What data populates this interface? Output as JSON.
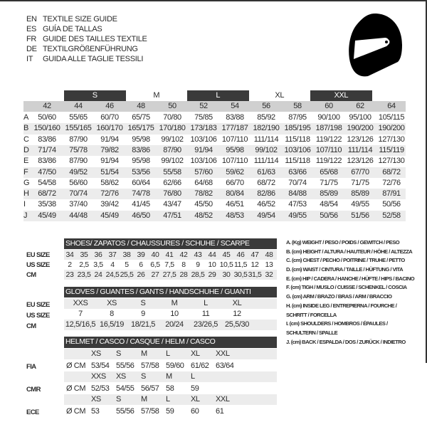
{
  "titles": [
    {
      "code": "EN",
      "text": "TEXTILE SIZE GUIDE"
    },
    {
      "code": "ES",
      "text": "GUÍA DE TALLAS"
    },
    {
      "code": "FR",
      "text": "GUIDE DES TAILLES TEXTILE"
    },
    {
      "code": "DE",
      "text": "TEXTILGRÖßENFÜHRUNG"
    },
    {
      "code": "IT",
      "text": "GUIDA ALLE TAGLIE TESSILI"
    }
  ],
  "icon": "helmet-icon",
  "textile": {
    "size_groups": [
      "S",
      "M",
      "L",
      "XL",
      "XXL"
    ],
    "sizes": [
      "42",
      "44",
      "46",
      "48",
      "50",
      "52",
      "54",
      "56",
      "58",
      "60",
      "62",
      "64"
    ],
    "rows": [
      {
        "label": "A",
        "values": [
          "50/60",
          "55/65",
          "60/70",
          "65/75",
          "70/80",
          "75/85",
          "83/88",
          "85/92",
          "87/95",
          "90/100",
          "95/100",
          "105/115"
        ]
      },
      {
        "label": "B",
        "values": [
          "150/160",
          "155/165",
          "160/170",
          "165/175",
          "170/180",
          "173/183",
          "177/187",
          "182/190",
          "185/195",
          "187/198",
          "190/200",
          "190/200"
        ]
      },
      {
        "label": "C",
        "values": [
          "83/86",
          "87/90",
          "91/94",
          "95/98",
          "99/102",
          "103/106",
          "107/110",
          "111/114",
          "115/118",
          "119/122",
          "123/126",
          "127/130"
        ]
      },
      {
        "label": "D",
        "values": [
          "71/74",
          "75/78",
          "79/82",
          "83/86",
          "87/90",
          "91/94",
          "95/98",
          "99/102",
          "103/106",
          "107/110",
          "111/114",
          "115/119"
        ]
      },
      {
        "label": "E",
        "values": [
          "83/86",
          "87/90",
          "91/94",
          "95/98",
          "99/102",
          "103/106",
          "107/110",
          "111/114",
          "115/118",
          "119/122",
          "123/126",
          "127/130"
        ]
      },
      {
        "label": "F",
        "values": [
          "47/50",
          "49/52",
          "51/54",
          "53/56",
          "55/58",
          "57/60",
          "59/62",
          "61/63",
          "63/66",
          "65/68",
          "67/70",
          "68/72"
        ]
      },
      {
        "label": "G",
        "values": [
          "54/58",
          "56/60",
          "58/62",
          "60/64",
          "62/66",
          "64/68",
          "66/70",
          "68/72",
          "70/74",
          "71/75",
          "71/75",
          "72/76"
        ]
      },
      {
        "label": "H",
        "values": [
          "68/72",
          "70/74",
          "72/76",
          "74/78",
          "76/80",
          "78/82",
          "80/84",
          "82/86",
          "84/88",
          "85/89",
          "85/89",
          "87/91"
        ]
      },
      {
        "label": "I",
        "values": [
          "35/38",
          "37/40",
          "39/42",
          "41/45",
          "43/47",
          "45/50",
          "46/51",
          "46/52",
          "47/53",
          "48/54",
          "49/55",
          "50/56"
        ]
      },
      {
        "label": "J",
        "values": [
          "45/49",
          "44/48",
          "45/49",
          "46/50",
          "47/51",
          "48/52",
          "48/53",
          "49/54",
          "49/55",
          "50/56",
          "51/56",
          "52/58"
        ]
      }
    ]
  },
  "shoes": {
    "title": "SHOES/ ZAPATOS / CHAUSSURES / SCHUHE / SCARPE",
    "rows": [
      {
        "label": "EU SIZE",
        "values": [
          "34",
          "35",
          "36",
          "37",
          "38",
          "39",
          "40",
          "41",
          "42",
          "43",
          "44",
          "45",
          "46",
          "47",
          "48"
        ]
      },
      {
        "label": "US SIZE",
        "values": [
          "2",
          "2,5",
          "3,5",
          "4",
          "5",
          "6",
          "6,5",
          "7,5",
          "8",
          "9",
          "10",
          "10,5",
          "11,5",
          "12",
          "13"
        ]
      },
      {
        "label": "CM",
        "values": [
          "23",
          "23,5",
          "24",
          "24,5",
          "25,5",
          "26",
          "27",
          "27,5",
          "28",
          "28,5",
          "29",
          "30",
          "30,5",
          "31,5",
          "32"
        ]
      }
    ]
  },
  "gloves": {
    "title": "GLOVES / GUANTES / GANTS / HANDSCHUHE / GUANTI",
    "rows": [
      {
        "label": "EU SIZE",
        "values": [
          "XXS",
          "XS",
          "S",
          "M",
          "L",
          "XL"
        ]
      },
      {
        "label": "US SIZE",
        "values": [
          "7",
          "8",
          "9",
          "10",
          "11",
          "12"
        ]
      },
      {
        "label": "CM",
        "values": [
          "12,5/16,5",
          "16,5/19",
          "18/21,5",
          "20/24",
          "23/26,5",
          "25,5/30"
        ]
      }
    ]
  },
  "helmet": {
    "title": "HELMET / CASCO / CASQUE / HELM / CASCO",
    "unit": "Ø CM",
    "groups": [
      {
        "label": "FIA",
        "sizes": [
          "XS",
          "S",
          "M",
          "L",
          "XL",
          "XXL"
        ],
        "values": [
          "53/54",
          "55/56",
          "57/58",
          "59/60",
          "61/62",
          "63/64"
        ]
      },
      {
        "label": "CMR",
        "sizes": [
          "XXS",
          "XS",
          "S",
          "M",
          "L"
        ],
        "values": [
          "52/53",
          "54/55",
          "56/57",
          "58",
          "59"
        ]
      },
      {
        "label": "ECE",
        "sizes": [
          "XS",
          "S",
          "M",
          "L",
          "XL",
          "XXL"
        ],
        "values": [
          "53",
          "55/56",
          "57/58",
          "59",
          "60",
          "61"
        ]
      }
    ]
  },
  "legend": [
    "A. (Kg) WEIGHT / PESO / POIDS / GEWITCH / PESO",
    "B. (cm) HEIGHT / ALTURA / HAUTEUR / HÖHE / ALTEZZA",
    "C. (cm) CHEST / PECHO / POITRINE / TRUHE / PETTO",
    "D. (cm) WAIST / CINTURA / TAILLE / HÜFTUNG / VITA",
    "E. (cm) HIP / CADERA / HANCHE / HÜFTE / HIPS /  BACINO",
    "F.  (cm) TIGH / MUSLO / CUISSE / SCHENKEL / COSCIA",
    "G. (cm) ARM  / BRAZO / BRAS / ARM / BRACCIO",
    "H. (cm) INSIDE LEG / ENTREPIERNA / FOURCHE /",
    "SCHRITT / FORCELLA",
    "I.  (cm) SHOULDERS / HOMBROS / ÉPAULES /",
    "SCHULTERN / SPALLE",
    "J. (cm) BACK / ESPALDA / DOS / ZURÜCK / INDIETRO"
  ]
}
